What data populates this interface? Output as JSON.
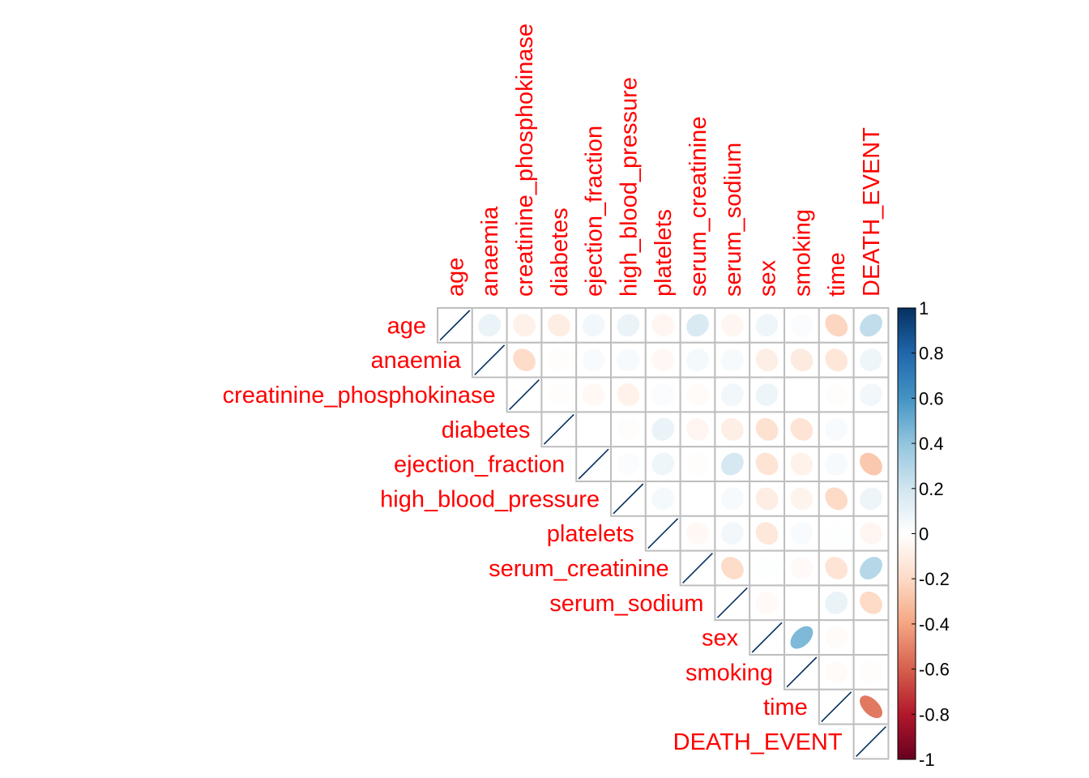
{
  "chart_data": {
    "type": "heatmap",
    "method": "ellipse",
    "layout": "upper-triangle",
    "variables": [
      "age",
      "anaemia",
      "creatinine_phosphokinase",
      "diabetes",
      "ejection_fraction",
      "high_blood_pressure",
      "platelets",
      "serum_creatinine",
      "serum_sodium",
      "sex",
      "smoking",
      "time",
      "DEATH_EVENT"
    ],
    "matrix": [
      [
        1.0,
        0.09,
        -0.08,
        -0.1,
        0.06,
        0.09,
        -0.05,
        0.16,
        -0.05,
        0.07,
        0.02,
        -0.22,
        0.25
      ],
      [
        0.09,
        1.0,
        -0.19,
        -0.01,
        0.03,
        0.04,
        -0.04,
        0.05,
        0.04,
        -0.09,
        -0.11,
        -0.14,
        0.07
      ],
      [
        -0.08,
        -0.19,
        1.0,
        -0.01,
        -0.04,
        -0.07,
        0.02,
        -0.02,
        0.06,
        0.08,
        0.0,
        -0.01,
        0.06
      ],
      [
        -0.1,
        -0.01,
        -0.01,
        1.0,
        -0.0,
        -0.01,
        0.09,
        -0.05,
        -0.09,
        -0.16,
        -0.15,
        0.03,
        -0.0
      ],
      [
        0.06,
        0.03,
        -0.04,
        -0.0,
        1.0,
        0.02,
        0.07,
        -0.01,
        0.18,
        -0.15,
        -0.07,
        0.04,
        -0.27
      ],
      [
        0.09,
        0.04,
        -0.07,
        -0.01,
        0.02,
        1.0,
        0.05,
        -0.0,
        0.04,
        -0.1,
        -0.06,
        -0.2,
        0.08
      ],
      [
        -0.05,
        -0.04,
        0.02,
        0.09,
        0.07,
        0.05,
        1.0,
        -0.04,
        0.06,
        -0.13,
        0.03,
        0.01,
        -0.05
      ],
      [
        0.16,
        0.05,
        -0.02,
        -0.05,
        -0.01,
        -0.0,
        -0.04,
        1.0,
        -0.19,
        0.01,
        -0.03,
        -0.15,
        0.29
      ],
      [
        -0.05,
        0.04,
        0.06,
        -0.09,
        0.18,
        0.04,
        0.06,
        -0.19,
        1.0,
        -0.03,
        0.0,
        0.09,
        -0.2
      ],
      [
        0.07,
        -0.09,
        0.08,
        -0.16,
        -0.15,
        -0.1,
        -0.13,
        0.01,
        -0.03,
        1.0,
        0.45,
        -0.02,
        -0.0
      ],
      [
        0.02,
        -0.11,
        0.0,
        -0.15,
        -0.07,
        -0.06,
        0.03,
        -0.03,
        0.0,
        0.45,
        1.0,
        -0.02,
        -0.01
      ],
      [
        -0.22,
        -0.14,
        -0.01,
        0.03,
        0.04,
        -0.2,
        0.01,
        -0.15,
        0.09,
        -0.02,
        -0.02,
        1.0,
        -0.53
      ],
      [
        0.25,
        0.07,
        0.06,
        -0.0,
        -0.27,
        0.08,
        -0.05,
        0.29,
        -0.2,
        -0.0,
        -0.01,
        -0.53,
        1.0
      ]
    ],
    "colorbar": {
      "range": [
        -1,
        1
      ],
      "ticks": [
        "1",
        "0.8",
        "0.6",
        "0.4",
        "0.2",
        "0",
        "-0.2",
        "-0.4",
        "-0.6",
        "-0.8",
        "-1"
      ],
      "tick_values": [
        1,
        0.8,
        0.6,
        0.4,
        0.2,
        0,
        -0.2,
        -0.4,
        -0.6,
        -0.8,
        -1
      ],
      "palette": [
        "#67001F",
        "#B2182B",
        "#D6604D",
        "#F4A582",
        "#FDDBC7",
        "#FFFFFF",
        "#D1E5F0",
        "#92C5DE",
        "#4393C3",
        "#2166AC",
        "#053061"
      ]
    },
    "label_color": "#FF0000",
    "grid_color": "#BEBEBE"
  }
}
